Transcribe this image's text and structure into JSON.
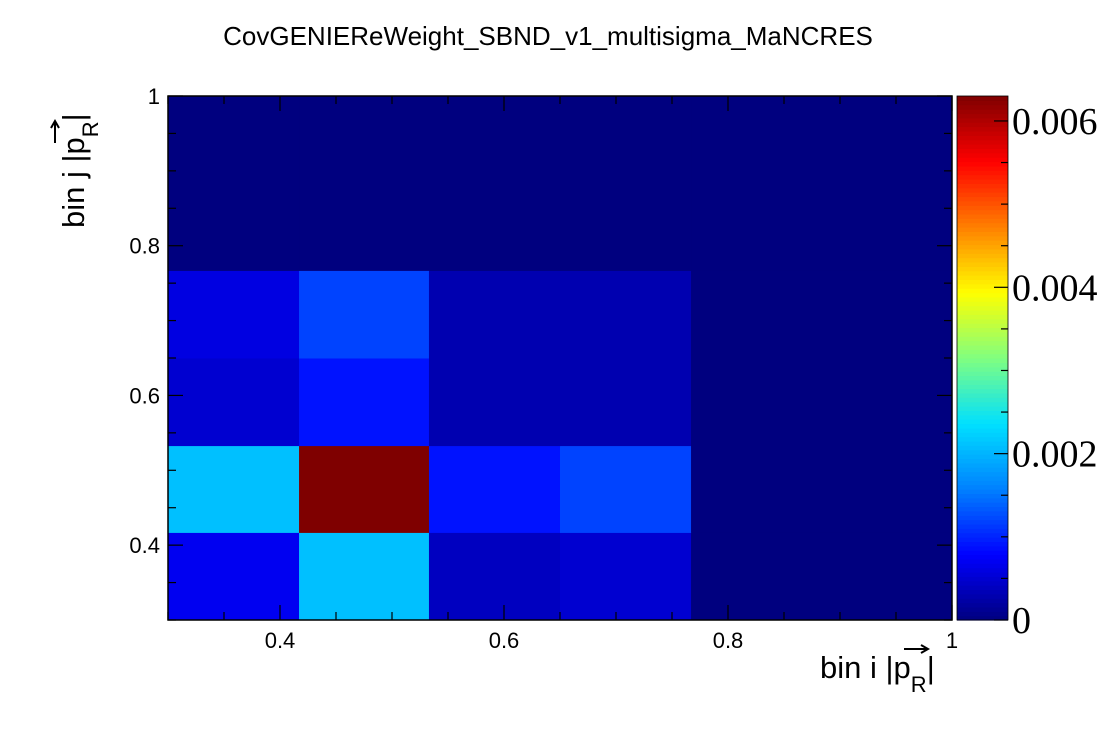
{
  "chart_data": {
    "type": "heatmap",
    "title": "CovGENIEReWeight_SBND_v1_multisigma_MaNCRES",
    "xlabel": {
      "prefix": "bin i |",
      "vector": "p",
      "subscript": "R",
      "suffix": "|"
    },
    "ylabel": {
      "prefix": "bin j |",
      "vector": "p",
      "subscript": "R",
      "suffix": "|"
    },
    "xlim": [
      0.3,
      1.0
    ],
    "ylim": [
      0.3,
      1.0
    ],
    "x_ticks": [
      {
        "value": 0.4,
        "label": "0.4"
      },
      {
        "value": 0.6,
        "label": "0.6"
      },
      {
        "value": 0.8,
        "label": "0.8"
      },
      {
        "value": 1.0,
        "label": "1"
      }
    ],
    "y_ticks": [
      {
        "value": 0.4,
        "label": "0.4"
      },
      {
        "value": 0.6,
        "label": "0.6"
      },
      {
        "value": 0.8,
        "label": "0.8"
      },
      {
        "value": 1.0,
        "label": "1"
      }
    ],
    "x_edges": [
      0.3,
      0.417,
      0.533,
      0.65,
      0.767,
      1.0
    ],
    "y_edges": [
      0.3,
      0.417,
      0.533,
      0.65,
      0.767,
      1.0
    ],
    "z": [
      [
        0.0007,
        0.0021,
        0.0004,
        0.0005,
        0.0
      ],
      [
        0.0021,
        0.0063,
        0.0009,
        0.0012,
        0.0
      ],
      [
        0.0005,
        0.0009,
        0.0003,
        0.0003,
        0.0
      ],
      [
        0.0006,
        0.0012,
        0.0003,
        0.0003,
        0.0
      ],
      [
        0.0,
        0.0,
        0.0,
        0.0,
        0.0
      ]
    ],
    "zlim": [
      0,
      0.0063
    ],
    "colorbar_ticks": [
      {
        "value": 0,
        "label": "0"
      },
      {
        "value": 0.002,
        "label": "0.002"
      },
      {
        "value": 0.004,
        "label": "0.004"
      },
      {
        "value": 0.006,
        "label": "0.006"
      }
    ],
    "colormap": [
      "#00007f",
      "#0000ff",
      "#0080ff",
      "#00e0ff",
      "#80ff80",
      "#ffff00",
      "#ff8000",
      "#ff0000",
      "#7f0000"
    ],
    "grid": false,
    "legend": "colorbar-right"
  }
}
